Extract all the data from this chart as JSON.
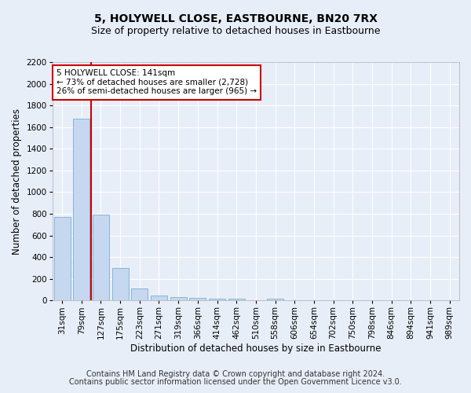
{
  "title": "5, HOLYWELL CLOSE, EASTBOURNE, BN20 7RX",
  "subtitle": "Size of property relative to detached houses in Eastbourne",
  "xlabel": "Distribution of detached houses by size in Eastbourne",
  "ylabel": "Number of detached properties",
  "categories": [
    "31sqm",
    "79sqm",
    "127sqm",
    "175sqm",
    "223sqm",
    "271sqm",
    "319sqm",
    "366sqm",
    "414sqm",
    "462sqm",
    "510sqm",
    "558sqm",
    "606sqm",
    "654sqm",
    "702sqm",
    "750sqm",
    "798sqm",
    "846sqm",
    "894sqm",
    "941sqm",
    "989sqm"
  ],
  "values": [
    770,
    1680,
    790,
    300,
    110,
    45,
    32,
    25,
    20,
    20,
    0,
    20,
    0,
    0,
    0,
    0,
    0,
    0,
    0,
    0,
    0
  ],
  "bar_color": "#c5d8ef",
  "bar_edge_color": "#7aadd4",
  "vline_color": "#cc0000",
  "annotation_text": "5 HOLYWELL CLOSE: 141sqm\n← 73% of detached houses are smaller (2,728)\n26% of semi-detached houses are larger (965) →",
  "annotation_box_color": "#ffffff",
  "annotation_box_edge": "#cc0000",
  "ylim": [
    0,
    2200
  ],
  "yticks": [
    0,
    200,
    400,
    600,
    800,
    1000,
    1200,
    1400,
    1600,
    1800,
    2000,
    2200
  ],
  "footer_line1": "Contains HM Land Registry data © Crown copyright and database right 2024.",
  "footer_line2": "Contains public sector information licensed under the Open Government Licence v3.0.",
  "bg_color": "#e8eef8",
  "plot_bg_color": "#e8eef8",
  "title_fontsize": 10,
  "subtitle_fontsize": 9,
  "axis_label_fontsize": 8.5,
  "tick_fontsize": 7.5,
  "footer_fontsize": 7
}
